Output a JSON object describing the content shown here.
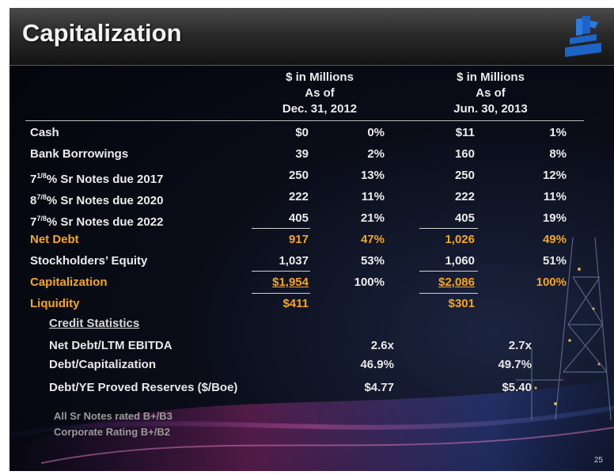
{
  "title": "Capitalization",
  "headers": {
    "col1": [
      "$ in Millions",
      "As of",
      "Dec. 31, 2012"
    ],
    "col2": [
      "$ in Millions",
      "As of",
      "Jun. 30, 2013"
    ]
  },
  "rows": [
    {
      "label": "Cash",
      "sup": "",
      "suffix": "",
      "v1": "$0",
      "p1": "0%",
      "v2": "$11",
      "p2": "1%",
      "highlight": false
    },
    {
      "label": "Bank Borrowings",
      "sup": "",
      "suffix": "",
      "v1": "39",
      "p1": "2%",
      "v2": "160",
      "p2": "8%",
      "highlight": false
    },
    {
      "label": "7",
      "sup": "1/8",
      "suffix": "% Sr Notes due 2017",
      "v1": "250",
      "p1": "13%",
      "v2": "250",
      "p2": "12%",
      "highlight": false
    },
    {
      "label": "8",
      "sup": "7/8",
      "suffix": "% Sr Notes due 2020",
      "v1": "222",
      "p1": "11%",
      "v2": "222",
      "p2": "11%",
      "highlight": false
    },
    {
      "label": "7",
      "sup": "7/8",
      "suffix": "% Sr Notes due 2022",
      "v1": "405",
      "p1": "21%",
      "v2": "405",
      "p2": "19%",
      "highlight": false
    },
    {
      "label": "Net Debt",
      "sup": "",
      "suffix": "",
      "v1": "917",
      "p1": "47%",
      "v2": "1,026",
      "p2": "49%",
      "highlight": true
    },
    {
      "label": "Stockholders’ Equity",
      "sup": "",
      "suffix": "",
      "v1": "1,037",
      "p1": "53%",
      "v2": "1,060",
      "p2": "51%",
      "highlight": false
    },
    {
      "label": "Capitalization",
      "sup": "",
      "suffix": "",
      "v1": "$1,954",
      "p1": "100%",
      "v2": "$2,086",
      "p2": "100%",
      "highlight": true
    },
    {
      "label": "Liquidity",
      "sup": "",
      "suffix": "",
      "v1": "$411",
      "p1": "",
      "v2": "$301",
      "p2": "",
      "highlight": true
    }
  ],
  "credit": {
    "title": "Credit Statistics",
    "rows": [
      {
        "label": "Net Debt/LTM EBITDA",
        "c1": "2.6x",
        "c2": "2.7x"
      },
      {
        "label": "Debt/Capitalization",
        "c1": "46.9%",
        "c2": "49.7%"
      },
      {
        "label": "Debt/YE Proved Reserves ($/Boe)",
        "c1": "$4.77",
        "c2": "$5.40"
      }
    ]
  },
  "notes": [
    "All Sr Notes rated B+/B3",
    "Corporate Rating B+/B2"
  ],
  "page_number": "25",
  "colors": {
    "highlight": "#f5a623",
    "text": "#ececec",
    "logo": "#1e63c8"
  }
}
